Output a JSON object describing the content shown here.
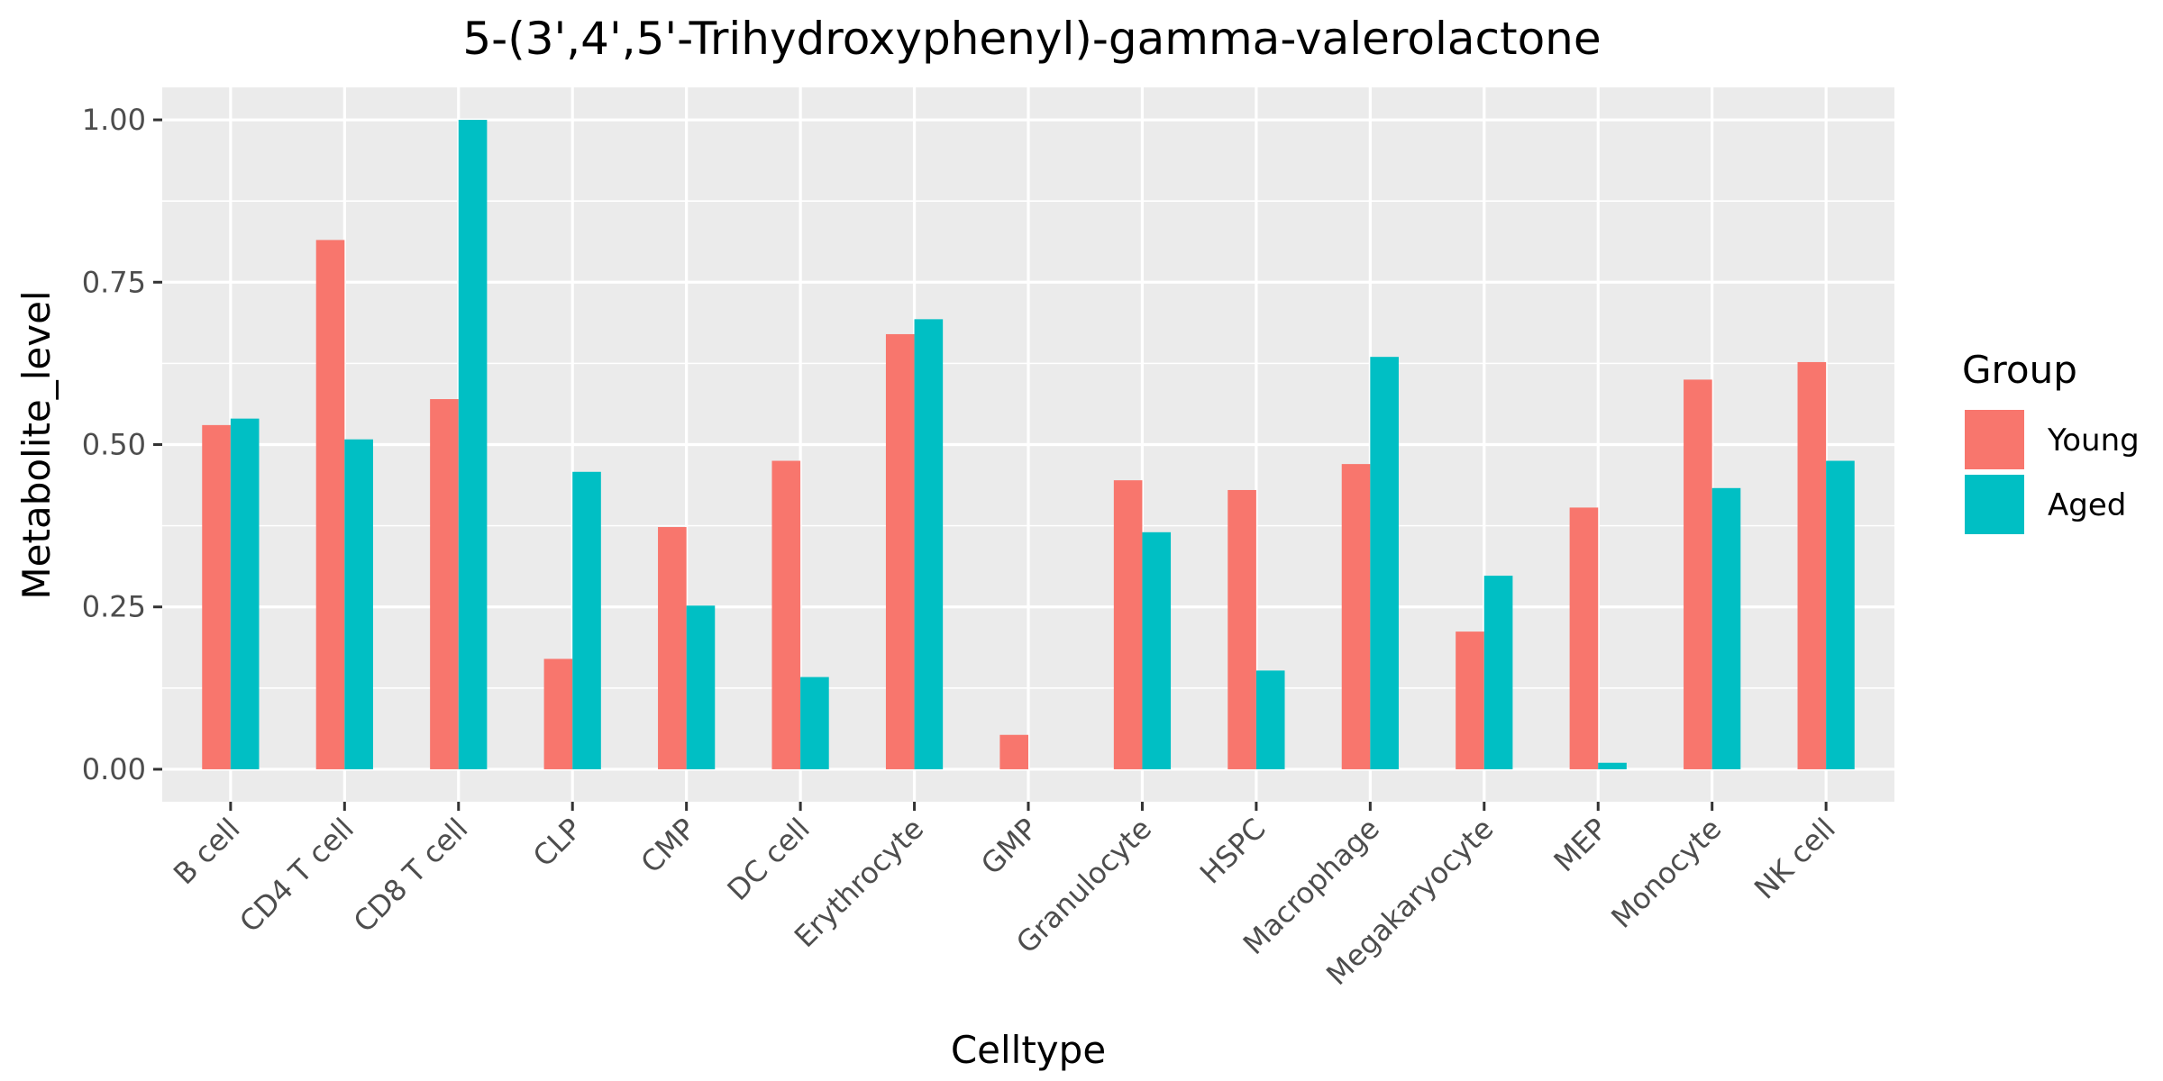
{
  "chart_data": {
    "type": "bar",
    "title": "5-(3',4',5'-Trihydroxyphenyl)-gamma-valerolactone",
    "xlabel": "Celltype",
    "ylabel": "Metabolite_level",
    "ylim": [
      -0.05,
      1.05
    ],
    "yticks": [
      0.0,
      0.25,
      0.5,
      0.75,
      1.0
    ],
    "ytick_labels": [
      "0.00",
      "0.25",
      "0.50",
      "0.75",
      "1.00"
    ],
    "grid": true,
    "legend_position": "right",
    "legend_title": "Group",
    "categories": [
      "B cell",
      "CD4 T cell",
      "CD8 T cell",
      "CLP",
      "CMP",
      "DC cell",
      "Erythrocyte",
      "GMP",
      "Granulocyte",
      "HSPC",
      "Macrophage",
      "Megakaryocyte",
      "MEP",
      "Monocyte",
      "NK cell"
    ],
    "series": [
      {
        "name": "Young",
        "color": "#F8766D",
        "values": [
          0.53,
          0.815,
          0.57,
          0.17,
          0.373,
          0.475,
          0.67,
          0.053,
          0.445,
          0.43,
          0.47,
          0.212,
          0.403,
          0.6,
          0.627
        ]
      },
      {
        "name": "Aged",
        "color": "#00BFC4",
        "values": [
          0.54,
          0.508,
          1.0,
          0.458,
          0.252,
          0.142,
          0.693,
          0.0,
          0.365,
          0.152,
          0.635,
          0.298,
          0.01,
          0.433,
          0.475
        ]
      }
    ]
  }
}
